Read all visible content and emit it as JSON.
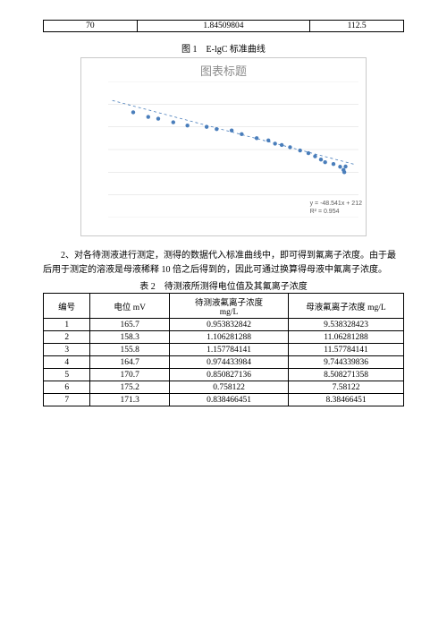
{
  "top_table": {
    "c1": "70",
    "c2": "1.84509804",
    "c3": "112.5"
  },
  "figure_caption": "图 1　E-lgC 标准曲线",
  "chart": {
    "title": "图表标题",
    "title_color": "#8c8c8c",
    "title_fontsize": 13,
    "border_color": "#c9c9c9",
    "background_color": "#ffffff",
    "grid_color": "#d9d9d9",
    "grid_stroke": 0.5,
    "xlim": [
      -1,
      2
    ],
    "ylim": [
      0,
      300
    ],
    "xticks": [
      -1,
      -0.5,
      0,
      0.5,
      1,
      1.5,
      2
    ],
    "yticks": [
      0,
      50,
      100,
      150,
      200,
      250,
      300
    ],
    "tick_fontsize": 7,
    "tick_color": "#808080",
    "point_color": "#4a7ebb",
    "point_radius": 2.2,
    "points": [
      [
        -0.7,
        232
      ],
      [
        -0.52,
        222
      ],
      [
        -0.4,
        218
      ],
      [
        -0.22,
        210
      ],
      [
        -0.05,
        203
      ],
      [
        0.18,
        200
      ],
      [
        0.3,
        195
      ],
      [
        0.48,
        192
      ],
      [
        0.6,
        184
      ],
      [
        0.78,
        175
      ],
      [
        0.92,
        170
      ],
      [
        1.0,
        163
      ],
      [
        1.08,
        160
      ],
      [
        1.18,
        155
      ],
      [
        1.3,
        148
      ],
      [
        1.4,
        142
      ],
      [
        1.48,
        135
      ],
      [
        1.55,
        128
      ],
      [
        1.6,
        122
      ],
      [
        1.7,
        118
      ],
      [
        1.78,
        112
      ],
      [
        1.82,
        105
      ],
      [
        1.83,
        100
      ],
      [
        1.845,
        112.5
      ]
    ],
    "trend": {
      "color": "#4a7ebb",
      "dash": "3,3",
      "width": 0.8,
      "slope": -48.541,
      "intercept": 212,
      "r2": 0.954,
      "eq_text": "y = -48.541x + 212",
      "r2_text": "R² = 0.954"
    }
  },
  "paragraph": "2、对各待测液进行测定，测得的数据代入标准曲线中，即可得到氟离子浓度。由于最后用于测定的溶液是母液稀释 10 倍之后得到的，因此可通过换算得母液中氟离子浓度。",
  "table2_caption": "表 2　待测液所测得电位值及其氟离子浓度",
  "table2": {
    "headers": [
      "编号",
      "电位 mV",
      "待测液氟离子浓度 mg/L",
      "母液氟离子浓度 mg/L"
    ],
    "rows": [
      [
        "1",
        "165.7",
        "0.953832842",
        "9.538328423"
      ],
      [
        "2",
        "158.3",
        "1.106281288",
        "11.06281288"
      ],
      [
        "3",
        "155.8",
        "1.157784141",
        "11.57784141"
      ],
      [
        "4",
        "164.7",
        "0.974433984",
        "9.744339836"
      ],
      [
        "5",
        "170.7",
        "0.850827136",
        "8.508271358"
      ],
      [
        "6",
        "175.2",
        "0.758122",
        "7.58122"
      ],
      [
        "7",
        "171.3",
        "0.838466451",
        "8.38466451"
      ]
    ],
    "col_widths": [
      "13%",
      "22%",
      "33%",
      "32%"
    ]
  }
}
